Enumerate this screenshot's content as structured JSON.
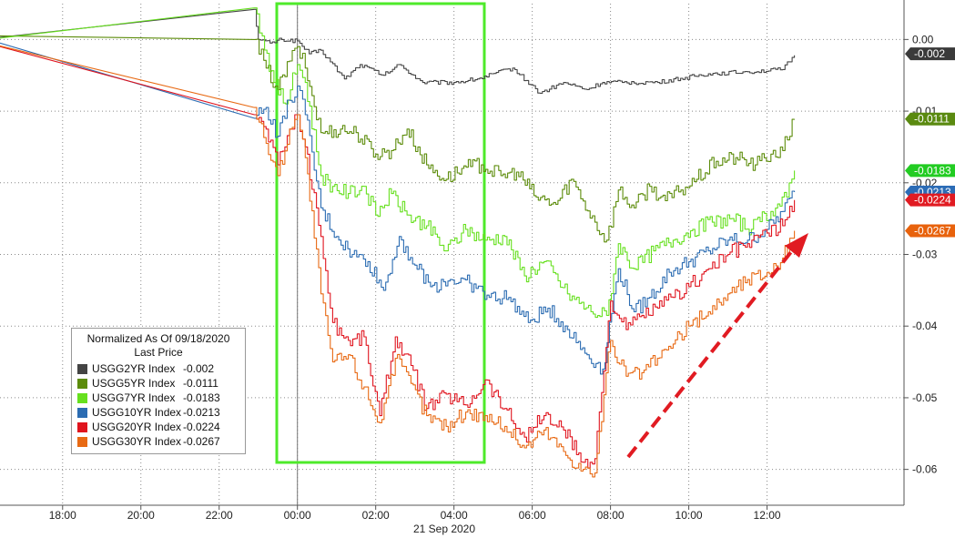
{
  "chart_data": {
    "type": "line",
    "xlabel": "21 Sep 2020",
    "x_tick_labels": [
      "18:00",
      "20:00",
      "22:00",
      "00:00",
      "02:00",
      "04:00",
      "06:00",
      "08:00",
      "10:00",
      "12:00"
    ],
    "x_tick_hours": [
      18,
      20,
      22,
      24,
      26,
      28,
      30,
      32,
      34,
      36
    ],
    "y_tick_labels": [
      "0.00",
      "-0.01",
      "-0.02",
      "-0.03",
      "-0.04",
      "-0.05",
      "-0.06"
    ],
    "y_tick_values": [
      0.0,
      -0.01,
      -0.02,
      -0.03,
      -0.04,
      -0.05,
      -0.06
    ],
    "ylim": [
      -0.065,
      0.005
    ],
    "xlim_hours": [
      16.4,
      39.5
    ],
    "grid": true,
    "legend": {
      "position": "bottom-left",
      "title": "Normalized As Of 09/18/2020",
      "subtitle": "Last Price"
    },
    "series": [
      {
        "name": "USGG2YR Index",
        "last": "-0.002",
        "color": "#444444",
        "tag_color": "#3a3a3a",
        "points": [
          [
            16.4,
            0.0003
          ],
          [
            22.9,
            0.0042
          ],
          [
            23.0,
            0.0
          ],
          [
            23.3,
            -0.0005
          ],
          [
            23.6,
            0.0
          ],
          [
            24.0,
            -0.0002
          ],
          [
            24.3,
            -0.002
          ],
          [
            24.6,
            -0.0015
          ],
          [
            25.2,
            -0.0055
          ],
          [
            25.6,
            -0.0035
          ],
          [
            26.2,
            -0.005
          ],
          [
            26.6,
            -0.0035
          ],
          [
            27.2,
            -0.006
          ],
          [
            28.0,
            -0.006
          ],
          [
            28.6,
            -0.0055
          ],
          [
            29.5,
            -0.004
          ],
          [
            30.2,
            -0.0075
          ],
          [
            30.8,
            -0.006
          ],
          [
            31.4,
            -0.007
          ],
          [
            31.8,
            -0.006
          ],
          [
            32.3,
            -0.006
          ],
          [
            33.2,
            -0.006
          ],
          [
            34.5,
            -0.0048
          ],
          [
            35.5,
            -0.0045
          ],
          [
            36.4,
            -0.0042
          ],
          [
            36.7,
            -0.0022
          ]
        ]
      },
      {
        "name": "USGG5YR Index",
        "last": "-0.0111",
        "color": "#5c8c0a",
        "tag_color": "#5a8a10",
        "points": [
          [
            16.4,
            0.0005
          ],
          [
            22.9,
            0.0
          ],
          [
            23.2,
            -0.004
          ],
          [
            23.5,
            -0.007
          ],
          [
            23.8,
            -0.003
          ],
          [
            24.0,
            -0.001
          ],
          [
            24.2,
            -0.004
          ],
          [
            24.6,
            -0.013
          ],
          [
            25.1,
            -0.0125
          ],
          [
            25.5,
            -0.013
          ],
          [
            26.0,
            -0.016
          ],
          [
            26.4,
            -0.0155
          ],
          [
            26.8,
            -0.0125
          ],
          [
            27.3,
            -0.0175
          ],
          [
            27.8,
            -0.0195
          ],
          [
            28.2,
            -0.018
          ],
          [
            28.7,
            -0.0175
          ],
          [
            29.2,
            -0.019
          ],
          [
            29.6,
            -0.0185
          ],
          [
            30.1,
            -0.022
          ],
          [
            30.6,
            -0.023
          ],
          [
            31.0,
            -0.0195
          ],
          [
            31.6,
            -0.0255
          ],
          [
            31.9,
            -0.028
          ],
          [
            32.2,
            -0.021
          ],
          [
            32.6,
            -0.0235
          ],
          [
            33.0,
            -0.0205
          ],
          [
            33.4,
            -0.0225
          ],
          [
            33.8,
            -0.021
          ],
          [
            34.2,
            -0.0195
          ],
          [
            34.7,
            -0.017
          ],
          [
            35.2,
            -0.0165
          ],
          [
            35.7,
            -0.0175
          ],
          [
            36.1,
            -0.016
          ],
          [
            36.4,
            -0.0155
          ],
          [
            36.7,
            -0.0111
          ]
        ]
      },
      {
        "name": "USGG7YR Index",
        "last": "-0.0183",
        "color": "#66e01e",
        "tag_color": "#22cc22",
        "points": [
          [
            16.4,
            0.0002
          ],
          [
            22.9,
            0.0044
          ],
          [
            23.1,
            0.0005
          ],
          [
            23.4,
            -0.006
          ],
          [
            23.7,
            -0.009
          ],
          [
            24.0,
            -0.0035
          ],
          [
            24.2,
            -0.006
          ],
          [
            24.6,
            -0.019
          ],
          [
            24.9,
            -0.0205
          ],
          [
            25.3,
            -0.0215
          ],
          [
            25.7,
            -0.0205
          ],
          [
            26.0,
            -0.0245
          ],
          [
            26.4,
            -0.0215
          ],
          [
            26.8,
            -0.0245
          ],
          [
            27.3,
            -0.026
          ],
          [
            27.8,
            -0.0295
          ],
          [
            28.3,
            -0.0265
          ],
          [
            28.8,
            -0.028
          ],
          [
            29.3,
            -0.0275
          ],
          [
            29.8,
            -0.033
          ],
          [
            30.3,
            -0.031
          ],
          [
            30.9,
            -0.0355
          ],
          [
            31.5,
            -0.038
          ],
          [
            31.9,
            -0.0385
          ],
          [
            32.2,
            -0.0285
          ],
          [
            32.6,
            -0.032
          ],
          [
            33.1,
            -0.0295
          ],
          [
            33.6,
            -0.028
          ],
          [
            34.1,
            -0.0265
          ],
          [
            34.6,
            -0.0255
          ],
          [
            35.1,
            -0.025
          ],
          [
            35.6,
            -0.0265
          ],
          [
            36.1,
            -0.024
          ],
          [
            36.5,
            -0.022
          ],
          [
            36.7,
            -0.0183
          ]
        ]
      },
      {
        "name": "USGG10YR Index",
        "last": "-0.0213",
        "color": "#2b6cb2",
        "tag_color": "#2c6cb6",
        "points": [
          [
            16.4,
            -0.0005
          ],
          [
            22.9,
            -0.011
          ],
          [
            23.2,
            -0.0095
          ],
          [
            23.5,
            -0.0135
          ],
          [
            23.8,
            -0.0085
          ],
          [
            24.0,
            -0.0065
          ],
          [
            24.2,
            -0.0105
          ],
          [
            24.6,
            -0.0235
          ],
          [
            25.0,
            -0.0275
          ],
          [
            25.4,
            -0.03
          ],
          [
            25.8,
            -0.031
          ],
          [
            26.2,
            -0.035
          ],
          [
            26.6,
            -0.0275
          ],
          [
            27.0,
            -0.0315
          ],
          [
            27.4,
            -0.0345
          ],
          [
            27.9,
            -0.0335
          ],
          [
            28.4,
            -0.034
          ],
          [
            28.9,
            -0.036
          ],
          [
            29.4,
            -0.036
          ],
          [
            29.9,
            -0.0395
          ],
          [
            30.4,
            -0.0375
          ],
          [
            30.9,
            -0.0405
          ],
          [
            31.4,
            -0.044
          ],
          [
            31.8,
            -0.046
          ],
          [
            32.2,
            -0.032
          ],
          [
            32.6,
            -0.038
          ],
          [
            33.0,
            -0.036
          ],
          [
            33.5,
            -0.0325
          ],
          [
            34.0,
            -0.031
          ],
          [
            34.5,
            -0.0295
          ],
          [
            35.0,
            -0.028
          ],
          [
            35.5,
            -0.028
          ],
          [
            36.0,
            -0.0265
          ],
          [
            36.4,
            -0.024
          ],
          [
            36.7,
            -0.0213
          ]
        ]
      },
      {
        "name": "USGG20YR Index",
        "last": "-0.0224",
        "color": "#e0141e",
        "tag_color": "#e11b22",
        "points": [
          [
            16.4,
            -0.001
          ],
          [
            22.9,
            -0.0105
          ],
          [
            23.2,
            -0.0125
          ],
          [
            23.5,
            -0.0175
          ],
          [
            23.8,
            -0.0125
          ],
          [
            24.0,
            -0.0105
          ],
          [
            24.2,
            -0.015
          ],
          [
            24.6,
            -0.0275
          ],
          [
            24.9,
            -0.0395
          ],
          [
            25.3,
            -0.042
          ],
          [
            25.7,
            -0.0415
          ],
          [
            26.1,
            -0.0525
          ],
          [
            26.5,
            -0.0415
          ],
          [
            26.9,
            -0.0455
          ],
          [
            27.3,
            -0.0515
          ],
          [
            27.8,
            -0.0495
          ],
          [
            28.3,
            -0.051
          ],
          [
            28.8,
            -0.0475
          ],
          [
            29.3,
            -0.0515
          ],
          [
            29.8,
            -0.0555
          ],
          [
            30.3,
            -0.0525
          ],
          [
            30.8,
            -0.0545
          ],
          [
            31.3,
            -0.059
          ],
          [
            31.6,
            -0.0585
          ],
          [
            32.0,
            -0.0365
          ],
          [
            32.4,
            -0.0405
          ],
          [
            32.8,
            -0.0385
          ],
          [
            33.2,
            -0.0375
          ],
          [
            33.6,
            -0.036
          ],
          [
            34.0,
            -0.0345
          ],
          [
            34.5,
            -0.032
          ],
          [
            35.0,
            -0.03
          ],
          [
            35.5,
            -0.0285
          ],
          [
            36.0,
            -0.027
          ],
          [
            36.4,
            -0.026
          ],
          [
            36.7,
            -0.0224
          ]
        ]
      },
      {
        "name": "USGG30YR Index",
        "last": "-0.0267",
        "color": "#e86a14",
        "tag_color": "#e8620c",
        "points": [
          [
            16.4,
            -0.0009
          ],
          [
            22.9,
            -0.0095
          ],
          [
            23.2,
            -0.0145
          ],
          [
            23.5,
            -0.019
          ],
          [
            23.8,
            -0.0125
          ],
          [
            24.0,
            -0.0105
          ],
          [
            24.2,
            -0.0165
          ],
          [
            24.6,
            -0.0355
          ],
          [
            24.9,
            -0.045
          ],
          [
            25.3,
            -0.044
          ],
          [
            25.7,
            -0.0485
          ],
          [
            26.1,
            -0.0535
          ],
          [
            26.5,
            -0.0445
          ],
          [
            26.9,
            -0.048
          ],
          [
            27.3,
            -0.0525
          ],
          [
            27.8,
            -0.054
          ],
          [
            28.3,
            -0.052
          ],
          [
            28.8,
            -0.0525
          ],
          [
            29.3,
            -0.054
          ],
          [
            29.8,
            -0.057
          ],
          [
            30.3,
            -0.0545
          ],
          [
            30.8,
            -0.0575
          ],
          [
            31.3,
            -0.06
          ],
          [
            31.6,
            -0.0605
          ],
          [
            32.0,
            -0.042
          ],
          [
            32.4,
            -0.047
          ],
          [
            32.8,
            -0.0465
          ],
          [
            33.2,
            -0.0445
          ],
          [
            33.6,
            -0.0425
          ],
          [
            34.0,
            -0.04
          ],
          [
            34.5,
            -0.038
          ],
          [
            35.0,
            -0.0355
          ],
          [
            35.5,
            -0.0335
          ],
          [
            36.0,
            -0.0325
          ],
          [
            36.4,
            -0.0305
          ],
          [
            36.7,
            -0.0267
          ]
        ]
      }
    ]
  }
}
